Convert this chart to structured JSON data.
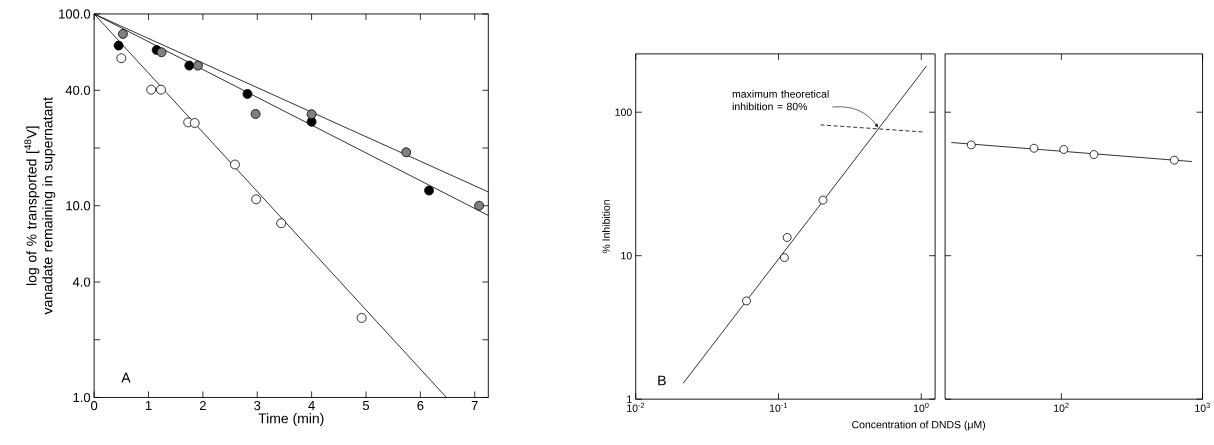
{
  "chart_data": [
    {
      "type": "scatter",
      "xlabel": "Time (min)",
      "ylabel": "log of % transported [$^{48}$V] vanadate remaining in supernatant",
      "log": "y",
      "marker": "circle",
      "grid": false,
      "xlim": [
        0,
        7.25
      ],
      "ylim": [
        1,
        100
      ],
      "xticks": [
        0,
        1,
        2,
        3,
        4,
        5,
        6,
        7
      ],
      "yticks": [
        {
          "value": 1,
          "label": "1.0"
        },
        {
          "value": 2,
          "label": null
        },
        {
          "value": 4,
          "label": "4.0"
        },
        {
          "value": 10,
          "label": "10.0"
        },
        {
          "value": 20,
          "label": null
        },
        {
          "value": 40,
          "label": "40.0"
        },
        {
          "value": 100,
          "label": "100.0"
        }
      ],
      "annotations": [
        "A"
      ],
      "series": [
        {
          "type": "line",
          "marker": "none",
          "color": "#000000",
          "x": [
            0,
            6.48
          ],
          "values": [
            100,
            1.0
          ]
        },
        {
          "type": "line",
          "marker": "none",
          "color": "#000000",
          "x": [
            0,
            7.25
          ],
          "values": [
            100,
            8.9
          ]
        },
        {
          "type": "line",
          "marker": "none",
          "color": "#000000",
          "x": [
            0,
            7.25
          ],
          "values": [
            100,
            11.8
          ]
        },
        {
          "color": "#ffffff",
          "x": [
            0.5,
            1.05,
            1.23,
            1.73,
            1.85,
            2.59,
            2.98,
            3.44,
            4.92
          ],
          "values": [
            58.8,
            40.3,
            40.3,
            27.2,
            27.0,
            16.4,
            10.8,
            8.1,
            2.6
          ]
        },
        {
          "color": "#000000",
          "x": [
            0.45,
            1.15,
            1.75,
            2.82,
            4.0,
            6.16
          ],
          "values": [
            68.4,
            64.9,
            53.8,
            38.3,
            27.4,
            12.0
          ]
        },
        {
          "color": "#808080",
          "x": [
            0.53,
            1.24,
            1.91,
            2.97,
            4.0,
            5.74,
            7.08
          ],
          "values": [
            78.7,
            63.1,
            53.8,
            30.1,
            30.0,
            19.0,
            10.0
          ]
        }
      ]
    },
    {
      "type": "scatter",
      "xlabel": "Concentration of DNDS (μM)",
      "ylabel": "% Inhibition",
      "log": "xy",
      "marker": "circle",
      "grid": false,
      "xlim": [
        0.01,
        1.25
      ],
      "ylim": [
        1,
        255
      ],
      "xticks": [
        {
          "value": 0.01,
          "label": "10$^{-2}$"
        },
        {
          "value": 0.1,
          "label": "10$^{-1}$"
        },
        {
          "value": 1,
          "label": "10$^{0}$"
        }
      ],
      "yticks": [
        1,
        10,
        100
      ],
      "annotations": [
        "B",
        {
          "text": "maximum theoretical inhibition = 80%",
          "x": 0.5,
          "y": 78
        }
      ],
      "series": [
        {
          "type": "line",
          "marker": "none",
          "color": "#000000",
          "x": [
            0.0215,
            1.09
          ],
          "values": [
            1.29,
            210
          ]
        },
        {
          "type": "line",
          "marker": "none",
          "color": "#000000",
          "line_style": "dashed",
          "x": [
            0.197,
            1.02
          ],
          "values": [
            81.6,
            72.9
          ]
        },
        {
          "color": "#ffffff",
          "x": [
            0.0597,
            0.11,
            0.115,
            0.205
          ],
          "values": [
            4.84,
            9.7,
            13.4,
            24.4
          ]
        }
      ]
    },
    {
      "type": "scatter",
      "log": "xy",
      "marker": "circle",
      "grid": false,
      "tick_labels": "x",
      "xlim": [
        15,
        1000
      ],
      "ylim": [
        1,
        255
      ],
      "xticks": [
        {
          "value": 100,
          "label": "10$^{2}$"
        },
        {
          "value": 1000,
          "label": "10$^{3}$"
        }
      ],
      "yticks": [
        1,
        10,
        100
      ],
      "series": [
        {
          "type": "line",
          "marker": "none",
          "color": "#000000",
          "x": [
            16.6,
            843
          ],
          "values": [
            61.5,
            45.3
          ]
        },
        {
          "color": "#ffffff",
          "x": [
            23.0,
            64.0,
            104,
            170,
            631
          ],
          "values": [
            59.2,
            56.1,
            55.0,
            50.7,
            46.3
          ]
        }
      ]
    }
  ]
}
